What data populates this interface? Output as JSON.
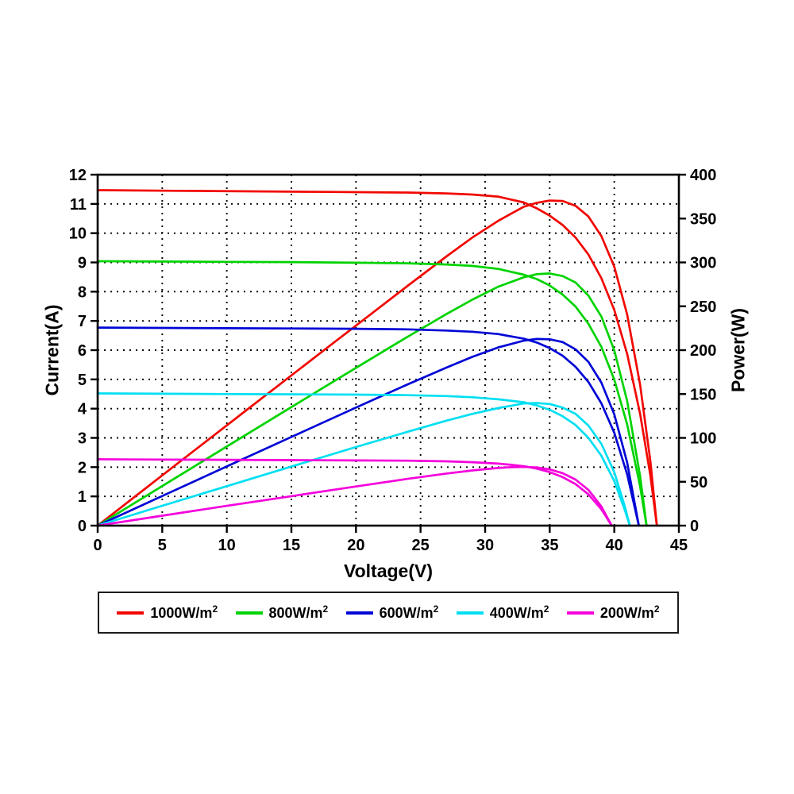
{
  "figure": {
    "background_color": "#ffffff",
    "frame_color": "#000000",
    "grid_color": "#000000",
    "grid_style": "dotted"
  },
  "chart_data": {
    "type": "line",
    "title": "",
    "xlabel": "Voltage(V)",
    "ylabel_left": "Current(A)",
    "ylabel_right": "Power(W)",
    "xlim": [
      0,
      45
    ],
    "ylim_left": [
      0,
      12
    ],
    "ylim_right": [
      0,
      400
    ],
    "xticks": [
      0,
      5,
      10,
      15,
      20,
      25,
      30,
      35,
      40,
      45
    ],
    "yticks_left": [
      0,
      1,
      2,
      3,
      4,
      5,
      6,
      7,
      8,
      9,
      10,
      11,
      12
    ],
    "yticks_right": [
      0,
      50,
      100,
      150,
      200,
      250,
      300,
      350,
      400
    ],
    "grid_x_at": [
      5,
      10,
      15,
      20,
      25,
      30,
      35,
      40
    ],
    "grid_y_left_at": [
      1,
      2,
      3,
      4,
      5,
      6,
      7,
      8,
      9,
      10,
      11
    ],
    "legend_position": "bottom",
    "series": [
      {
        "name": "1000W/m2",
        "label": "1000W/m",
        "exp": "2",
        "color": "#f10800",
        "isc_a": 11.45,
        "voc_v": 43.3,
        "vmp_v": 35.3,
        "pmp_w": 371,
        "iv": [
          [
            0,
            11.47
          ],
          [
            3,
            11.46
          ],
          [
            6,
            11.45
          ],
          [
            9,
            11.44
          ],
          [
            12,
            11.43
          ],
          [
            15,
            11.42
          ],
          [
            18,
            11.41
          ],
          [
            21,
            11.4
          ],
          [
            24,
            11.39
          ],
          [
            27,
            11.36
          ],
          [
            29,
            11.32
          ],
          [
            31,
            11.25
          ],
          [
            33,
            11.05
          ],
          [
            34,
            10.85
          ],
          [
            35,
            10.6
          ],
          [
            36,
            10.28
          ],
          [
            37,
            9.85
          ],
          [
            38,
            9.27
          ],
          [
            39,
            8.46
          ],
          [
            40,
            7.37
          ],
          [
            41,
            5.87
          ],
          [
            42,
            3.82
          ],
          [
            42.8,
            1.7
          ],
          [
            43.3,
            0
          ]
        ],
        "pv": [
          [
            0,
            0
          ],
          [
            3,
            34.4
          ],
          [
            6,
            68.7
          ],
          [
            9,
            102.9
          ],
          [
            12,
            137.1
          ],
          [
            15,
            171.2
          ],
          [
            18,
            205.3
          ],
          [
            21,
            239.3
          ],
          [
            24,
            273.3
          ],
          [
            27,
            306.8
          ],
          [
            29,
            328.2
          ],
          [
            31,
            347.3
          ],
          [
            33,
            363.5
          ],
          [
            34,
            368.0
          ],
          [
            35,
            370.5
          ],
          [
            36,
            370.0
          ],
          [
            37,
            364.5
          ],
          [
            38,
            352.3
          ],
          [
            39,
            330.0
          ],
          [
            40,
            295.0
          ],
          [
            41,
            240.5
          ],
          [
            42,
            160.5
          ],
          [
            42.8,
            72.8
          ],
          [
            43.3,
            0
          ]
        ]
      },
      {
        "name": "800W/m2",
        "label": "800W/m",
        "exp": "2",
        "color": "#00d300",
        "isc_a": 9.02,
        "voc_v": 42.5,
        "vmp_v": 34.5,
        "pmp_w": 288,
        "iv": [
          [
            0,
            9.04
          ],
          [
            5,
            9.03
          ],
          [
            10,
            9.02
          ],
          [
            15,
            9.01
          ],
          [
            20,
            8.99
          ],
          [
            24,
            8.97
          ],
          [
            27,
            8.93
          ],
          [
            29,
            8.88
          ],
          [
            31,
            8.78
          ],
          [
            33,
            8.58
          ],
          [
            34,
            8.43
          ],
          [
            35,
            8.21
          ],
          [
            36,
            7.9
          ],
          [
            37,
            7.49
          ],
          [
            38,
            6.9
          ],
          [
            39,
            6.11
          ],
          [
            40,
            4.99
          ],
          [
            41,
            3.46
          ],
          [
            42,
            1.34
          ],
          [
            42.5,
            0
          ]
        ],
        "pv": [
          [
            0,
            0
          ],
          [
            5,
            45.1
          ],
          [
            10,
            90.2
          ],
          [
            15,
            135.1
          ],
          [
            20,
            179.8
          ],
          [
            24,
            215.3
          ],
          [
            27,
            241.1
          ],
          [
            29,
            257.5
          ],
          [
            31,
            272.2
          ],
          [
            33,
            283.1
          ],
          [
            34,
            286.6
          ],
          [
            35,
            287.4
          ],
          [
            36,
            284.4
          ],
          [
            37,
            277.1
          ],
          [
            38,
            262.2
          ],
          [
            39,
            238.3
          ],
          [
            40,
            199.6
          ],
          [
            41,
            141.9
          ],
          [
            42,
            56.3
          ],
          [
            42.5,
            0
          ]
        ]
      },
      {
        "name": "600W/m2",
        "label": "600W/m",
        "exp": "2",
        "color": "#0006d6",
        "isc_a": 6.75,
        "voc_v": 41.9,
        "vmp_v": 34.0,
        "pmp_w": 213,
        "iv": [
          [
            0,
            6.77
          ],
          [
            5,
            6.76
          ],
          [
            10,
            6.75
          ],
          [
            15,
            6.74
          ],
          [
            20,
            6.73
          ],
          [
            24,
            6.71
          ],
          [
            27,
            6.67
          ],
          [
            29,
            6.63
          ],
          [
            31,
            6.55
          ],
          [
            33,
            6.39
          ],
          [
            34,
            6.26
          ],
          [
            35,
            6.07
          ],
          [
            36,
            5.81
          ],
          [
            37,
            5.43
          ],
          [
            38,
            4.91
          ],
          [
            39,
            4.18
          ],
          [
            40,
            3.17
          ],
          [
            41,
            1.75
          ],
          [
            41.9,
            0
          ]
        ],
        "pv": [
          [
            0,
            0
          ],
          [
            5,
            33.8
          ],
          [
            10,
            67.5
          ],
          [
            15,
            101.1
          ],
          [
            20,
            134.6
          ],
          [
            24,
            161.0
          ],
          [
            27,
            180.1
          ],
          [
            29,
            192.3
          ],
          [
            31,
            203.1
          ],
          [
            33,
            210.9
          ],
          [
            34,
            212.8
          ],
          [
            35,
            212.4
          ],
          [
            36,
            209.2
          ],
          [
            37,
            200.9
          ],
          [
            38,
            186.6
          ],
          [
            39,
            163.0
          ],
          [
            40,
            126.7
          ],
          [
            41,
            71.8
          ],
          [
            41.9,
            0
          ]
        ]
      },
      {
        "name": "400W/m2",
        "label": "400W/m",
        "exp": "2",
        "color": "#00dff2",
        "isc_a": 4.5,
        "voc_v": 41.2,
        "vmp_v": 33.5,
        "pmp_w": 140,
        "iv": [
          [
            0,
            4.52
          ],
          [
            5,
            4.51
          ],
          [
            10,
            4.5
          ],
          [
            15,
            4.49
          ],
          [
            20,
            4.48
          ],
          [
            24,
            4.46
          ],
          [
            27,
            4.43
          ],
          [
            29,
            4.39
          ],
          [
            31,
            4.32
          ],
          [
            33,
            4.22
          ],
          [
            34,
            4.11
          ],
          [
            35,
            3.96
          ],
          [
            36,
            3.74
          ],
          [
            37,
            3.44
          ],
          [
            38,
            3.0
          ],
          [
            39,
            2.39
          ],
          [
            40,
            1.52
          ],
          [
            40.8,
            0.55
          ],
          [
            41.2,
            0
          ]
        ],
        "pv": [
          [
            0,
            0
          ],
          [
            5,
            22.6
          ],
          [
            10,
            45.0
          ],
          [
            15,
            67.3
          ],
          [
            20,
            89.6
          ],
          [
            24,
            107.0
          ],
          [
            27,
            119.6
          ],
          [
            29,
            127.3
          ],
          [
            31,
            133.9
          ],
          [
            33,
            139.3
          ],
          [
            34,
            139.7
          ],
          [
            35,
            138.6
          ],
          [
            36,
            134.6
          ],
          [
            37,
            127.3
          ],
          [
            38,
            114.0
          ],
          [
            39,
            93.2
          ],
          [
            40,
            60.8
          ],
          [
            40.8,
            22.4
          ],
          [
            41.2,
            0
          ]
        ]
      },
      {
        "name": "200W/m2",
        "label": "200W/m",
        "exp": "2",
        "color": "#f500dc",
        "isc_a": 2.25,
        "voc_v": 39.8,
        "vmp_v": 32.5,
        "pmp_w": 68,
        "iv": [
          [
            0,
            2.27
          ],
          [
            5,
            2.26
          ],
          [
            10,
            2.25
          ],
          [
            15,
            2.24
          ],
          [
            20,
            2.23
          ],
          [
            24,
            2.22
          ],
          [
            27,
            2.2
          ],
          [
            29,
            2.17
          ],
          [
            31,
            2.12
          ],
          [
            32,
            2.08
          ],
          [
            33,
            2.03
          ],
          [
            34,
            1.95
          ],
          [
            35,
            1.83
          ],
          [
            36,
            1.66
          ],
          [
            37,
            1.42
          ],
          [
            38,
            1.07
          ],
          [
            39,
            0.56
          ],
          [
            39.8,
            0
          ]
        ],
        "pv": [
          [
            0,
            0
          ],
          [
            5,
            11.3
          ],
          [
            10,
            22.5
          ],
          [
            15,
            33.6
          ],
          [
            20,
            44.6
          ],
          [
            24,
            53.3
          ],
          [
            27,
            59.4
          ],
          [
            29,
            62.9
          ],
          [
            31,
            65.7
          ],
          [
            32,
            66.6
          ],
          [
            33,
            67.0
          ],
          [
            34,
            66.3
          ],
          [
            35,
            64.1
          ],
          [
            36,
            59.8
          ],
          [
            37,
            52.5
          ],
          [
            38,
            40.7
          ],
          [
            39,
            21.8
          ],
          [
            39.8,
            0
          ]
        ]
      }
    ]
  }
}
